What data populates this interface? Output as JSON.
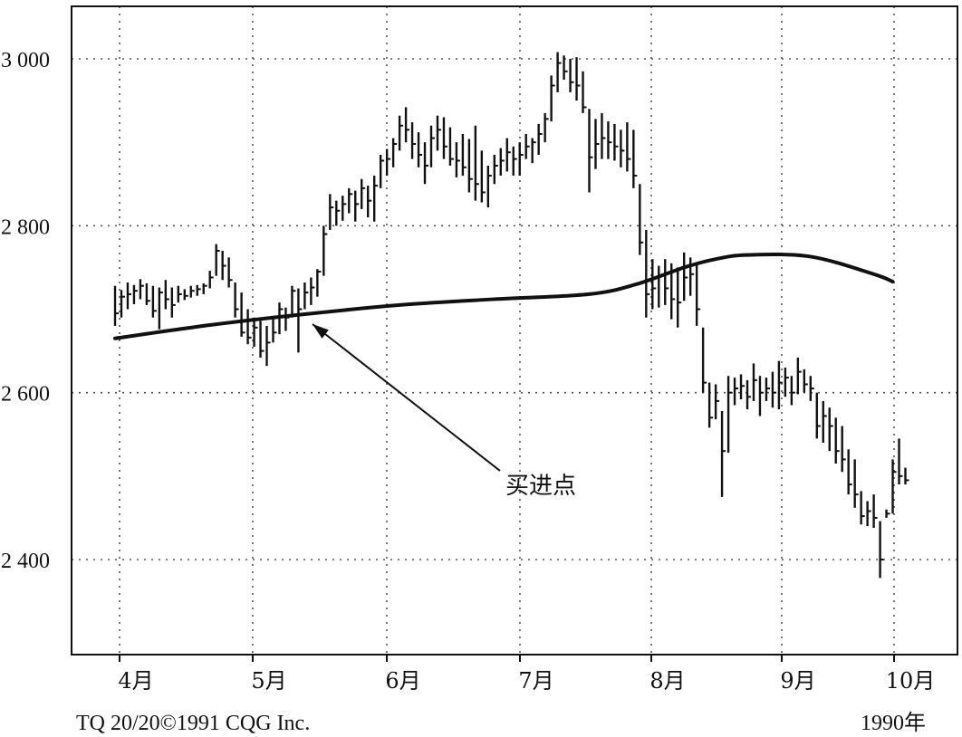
{
  "chart_data": {
    "type": "ohlc-bar",
    "y_tick_labels": [
      "3 000",
      "2 800",
      "2 600",
      "2 400"
    ],
    "y_ticks": [
      3000,
      2800,
      2600,
      2400
    ],
    "ylim": [
      2290,
      3065
    ],
    "x_tick_labels": [
      "4月",
      "5月",
      "6月",
      "7月",
      "8月",
      "9月",
      "10月"
    ],
    "grid": true,
    "grid_style": "dotted",
    "annotation": {
      "text": "买进点",
      "points_to": {
        "month": "5月",
        "value": 2693
      }
    },
    "footer_left": "TQ 20/20©1991 CQG Inc.",
    "footer_right": "1990年",
    "moving_average": [
      [
        0,
        2665
      ],
      [
        3,
        2681
      ],
      [
        6,
        2694
      ],
      [
        9,
        2705
      ],
      [
        12,
        2712
      ],
      [
        15,
        2718
      ],
      [
        16.5,
        2730
      ],
      [
        18,
        2750
      ],
      [
        19,
        2760
      ],
      [
        20,
        2765
      ],
      [
        22,
        2763
      ],
      [
        24,
        2742
      ],
      [
        24.6,
        2733
      ]
    ],
    "bars": [
      [
        0.0,
        2728,
        2680,
        2695
      ],
      [
        0.2,
        2723,
        2690,
        2715
      ],
      [
        0.4,
        2732,
        2700,
        2718
      ],
      [
        0.6,
        2729,
        2706,
        2722
      ],
      [
        0.8,
        2736,
        2712,
        2728
      ],
      [
        1.0,
        2731,
        2705,
        2710
      ],
      [
        1.2,
        2728,
        2690,
        2698
      ],
      [
        1.4,
        2726,
        2676,
        2720
      ],
      [
        1.6,
        2735,
        2700,
        2712
      ],
      [
        1.8,
        2726,
        2690,
        2705
      ],
      [
        2.0,
        2728,
        2708,
        2718
      ],
      [
        2.2,
        2724,
        2711,
        2716
      ],
      [
        2.4,
        2728,
        2714,
        2722
      ],
      [
        2.6,
        2729,
        2716,
        2724
      ],
      [
        2.8,
        2731,
        2718,
        2728
      ],
      [
        3.0,
        2746,
        2725,
        2738
      ],
      [
        3.2,
        2778,
        2740,
        2770
      ],
      [
        3.4,
        2770,
        2735,
        2752
      ],
      [
        3.6,
        2762,
        2726,
        2735
      ],
      [
        3.8,
        2732,
        2690,
        2700
      ],
      [
        4.0,
        2720,
        2667,
        2672
      ],
      [
        4.2,
        2700,
        2658,
        2666
      ],
      [
        4.4,
        2690,
        2655,
        2678
      ],
      [
        4.6,
        2686,
        2642,
        2650
      ],
      [
        4.8,
        2680,
        2632,
        2660
      ],
      [
        5.0,
        2692,
        2660,
        2672
      ],
      [
        5.2,
        2708,
        2670,
        2700
      ],
      [
        5.4,
        2702,
        2674,
        2690
      ],
      [
        5.6,
        2728,
        2690,
        2722
      ],
      [
        5.8,
        2725,
        2648,
        2700
      ],
      [
        6.0,
        2732,
        2700,
        2720
      ],
      [
        6.2,
        2738,
        2705,
        2726
      ],
      [
        6.4,
        2748,
        2715,
        2745
      ],
      [
        6.6,
        2800,
        2740,
        2790
      ],
      [
        6.8,
        2838,
        2795,
        2822
      ],
      [
        7.0,
        2830,
        2800,
        2818
      ],
      [
        7.2,
        2836,
        2806,
        2826
      ],
      [
        7.4,
        2845,
        2815,
        2838
      ],
      [
        7.6,
        2842,
        2805,
        2826
      ],
      [
        7.8,
        2856,
        2820,
        2845
      ],
      [
        8.0,
        2848,
        2810,
        2830
      ],
      [
        8.2,
        2860,
        2805,
        2848
      ],
      [
        8.4,
        2885,
        2845,
        2878
      ],
      [
        8.6,
        2892,
        2860,
        2880
      ],
      [
        8.8,
        2905,
        2870,
        2898
      ],
      [
        9.0,
        2932,
        2890,
        2920
      ],
      [
        9.2,
        2942,
        2900,
        2915
      ],
      [
        9.4,
        2924,
        2880,
        2898
      ],
      [
        9.6,
        2912,
        2870,
        2885
      ],
      [
        9.8,
        2900,
        2850,
        2872
      ],
      [
        10.0,
        2920,
        2870,
        2905
      ],
      [
        10.2,
        2932,
        2890,
        2915
      ],
      [
        10.4,
        2930,
        2880,
        2895
      ],
      [
        10.6,
        2918,
        2872,
        2880
      ],
      [
        10.8,
        2900,
        2858,
        2878
      ],
      [
        11.0,
        2910,
        2860,
        2870
      ],
      [
        11.2,
        2904,
        2840,
        2856
      ],
      [
        11.4,
        2920,
        2830,
        2850
      ],
      [
        11.6,
        2890,
        2828,
        2840
      ],
      [
        11.8,
        2872,
        2822,
        2860
      ],
      [
        12.0,
        2885,
        2850,
        2872
      ],
      [
        12.2,
        2893,
        2860,
        2878
      ],
      [
        12.4,
        2905,
        2865,
        2888
      ],
      [
        12.6,
        2895,
        2860,
        2880
      ],
      [
        12.8,
        2900,
        2860,
        2885
      ],
      [
        13.0,
        2910,
        2880,
        2895
      ],
      [
        13.2,
        2905,
        2875,
        2900
      ],
      [
        13.4,
        2922,
        2885,
        2910
      ],
      [
        13.6,
        2935,
        2900,
        2928
      ],
      [
        13.8,
        2980,
        2925,
        2968
      ],
      [
        14.0,
        3008,
        2960,
        2995
      ],
      [
        14.2,
        3004,
        2975,
        2985
      ],
      [
        14.4,
        3000,
        2960,
        2972
      ],
      [
        14.6,
        3002,
        2950,
        2968
      ],
      [
        14.8,
        2985,
        2935,
        2942
      ],
      [
        15.0,
        2940,
        2840,
        2882
      ],
      [
        15.2,
        2928,
        2868,
        2898
      ],
      [
        15.4,
        2935,
        2880,
        2905
      ],
      [
        15.6,
        2925,
        2880,
        2900
      ],
      [
        15.8,
        2922,
        2878,
        2895
      ],
      [
        16.0,
        2915,
        2870,
        2890
      ],
      [
        16.2,
        2924,
        2865,
        2880
      ],
      [
        16.4,
        2915,
        2845,
        2860
      ],
      [
        16.6,
        2850,
        2765,
        2780
      ],
      [
        16.8,
        2795,
        2690,
        2718
      ],
      [
        17.0,
        2760,
        2700,
        2725
      ],
      [
        17.2,
        2752,
        2702,
        2740
      ],
      [
        17.4,
        2760,
        2705,
        2725
      ],
      [
        17.6,
        2755,
        2688,
        2712
      ],
      [
        17.8,
        2750,
        2678,
        2708
      ],
      [
        18.0,
        2768,
        2710,
        2738
      ],
      [
        18.2,
        2762,
        2716,
        2742
      ],
      [
        18.4,
        2755,
        2680,
        2700
      ],
      [
        18.6,
        2678,
        2600,
        2612
      ],
      [
        18.8,
        2612,
        2558,
        2570
      ],
      [
        19.0,
        2610,
        2568,
        2590
      ],
      [
        19.2,
        2578,
        2475,
        2530
      ],
      [
        19.4,
        2620,
        2528,
        2600
      ],
      [
        19.6,
        2618,
        2585,
        2605
      ],
      [
        19.8,
        2622,
        2592,
        2608
      ],
      [
        20.0,
        2615,
        2580,
        2595
      ],
      [
        20.2,
        2635,
        2590,
        2615
      ],
      [
        20.4,
        2620,
        2572,
        2600
      ],
      [
        20.6,
        2618,
        2590,
        2605
      ],
      [
        20.8,
        2625,
        2582,
        2600
      ],
      [
        21.0,
        2638,
        2580,
        2612
      ],
      [
        21.2,
        2630,
        2595,
        2618
      ],
      [
        21.4,
        2620,
        2585,
        2600
      ],
      [
        21.6,
        2642,
        2598,
        2625
      ],
      [
        21.8,
        2628,
        2600,
        2610
      ],
      [
        22.0,
        2620,
        2590,
        2605
      ],
      [
        22.2,
        2600,
        2545,
        2560
      ],
      [
        22.4,
        2590,
        2540,
        2572
      ],
      [
        22.6,
        2582,
        2530,
        2560
      ],
      [
        22.8,
        2570,
        2515,
        2530
      ],
      [
        23.0,
        2560,
        2505,
        2520
      ],
      [
        23.2,
        2532,
        2478,
        2490
      ],
      [
        23.4,
        2520,
        2462,
        2478
      ],
      [
        23.6,
        2482,
        2442,
        2452
      ],
      [
        23.8,
        2470,
        2440,
        2458
      ],
      [
        24.0,
        2478,
        2438,
        2450
      ],
      [
        24.2,
        2446,
        2378,
        2400
      ],
      [
        24.4,
        2460,
        2450,
        2455
      ],
      [
        24.6,
        2520,
        2455,
        2505
      ],
      [
        24.8,
        2545,
        2490,
        2500
      ],
      [
        25.0,
        2510,
        2490,
        2495
      ]
    ],
    "bar_format": [
      "t",
      "high",
      "low",
      "close"
    ]
  }
}
